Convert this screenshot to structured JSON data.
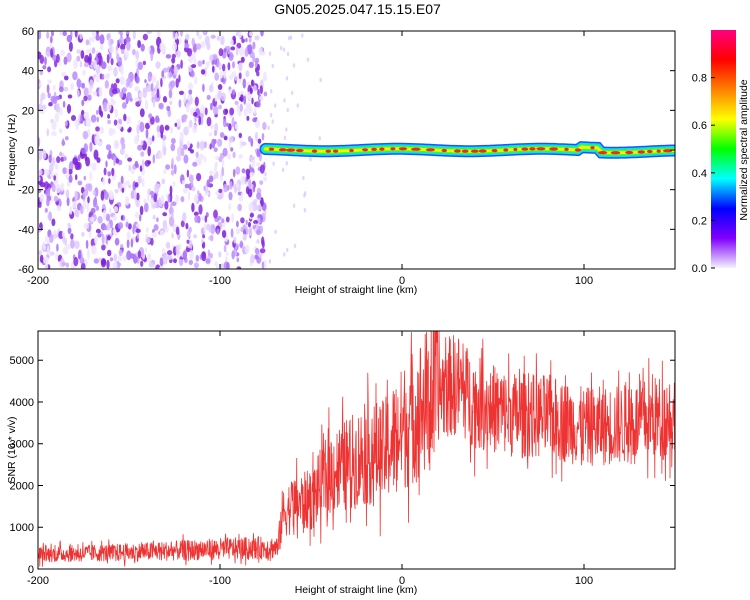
{
  "title": "GN05.2025.047.15.15.E07",
  "colors": {
    "spectrogram_noise": "#8a2be2",
    "snr_line": "#ee3333",
    "colorbar_stops": [
      "#f2f2ff",
      "#8000ff",
      "#0000ff",
      "#00ffff",
      "#00ff00",
      "#ffff00",
      "#ff8000",
      "#ff0000",
      "#ff0080"
    ]
  },
  "chart_data": [
    {
      "type": "heatmap",
      "xlabel": "Height of straight line (km)",
      "ylabel": "Frequency (Hz)",
      "xlim": [
        -200,
        150
      ],
      "ylim": [
        -60,
        60
      ],
      "xticks": [
        -200,
        -100,
        0,
        100
      ],
      "yticks": [
        -60,
        -40,
        -20,
        0,
        20,
        40,
        60
      ],
      "noise_region_x": [
        -200,
        -75
      ],
      "signal_region_x": [
        -75,
        150
      ],
      "signal_frequency_hz": 0,
      "grid": false,
      "colorbar": {
        "label": "Normalized spectral amplitude",
        "range": [
          0,
          1
        ],
        "ticks": [
          "0.0",
          "0.2",
          "0.4",
          "0.6",
          "0.8"
        ],
        "placement": "right"
      }
    },
    {
      "type": "line",
      "xlabel": "Height of straight line (km)",
      "ylabel": "SNR (10 * v/v)",
      "xlim": [
        -200,
        150
      ],
      "ylim": [
        0,
        5700
      ],
      "xticks": [
        -200,
        -100,
        0,
        100
      ],
      "yticks": [
        0,
        1000,
        2000,
        3000,
        4000,
        5000
      ],
      "grid": false,
      "trend": {
        "x": [
          -200,
          -150,
          -100,
          -80,
          -68,
          -66,
          -60,
          -50,
          -40,
          -30,
          -20,
          -10,
          0,
          10,
          20,
          30,
          40,
          50,
          60,
          80,
          100,
          120,
          150
        ],
        "y": [
          350,
          400,
          480,
          500,
          520,
          1300,
          1550,
          1650,
          2300,
          2500,
          2750,
          2800,
          3350,
          3850,
          4250,
          4450,
          4000,
          3850,
          3700,
          3650,
          3400,
          3450,
          3700
        ]
      }
    }
  ]
}
